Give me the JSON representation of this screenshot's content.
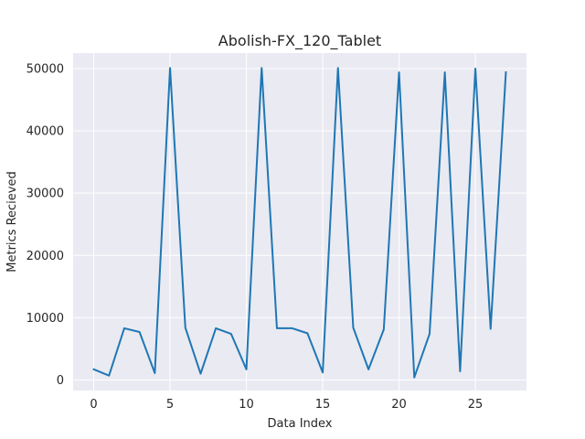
{
  "chart_data": {
    "type": "line",
    "title": "Abolish-FX_120_Tablet",
    "xlabel": "Data Index",
    "ylabel": "Metrics Recieved",
    "xlim": [
      -1.35,
      28.35
    ],
    "ylim": [
      -1700,
      52500
    ],
    "xticks": [
      0,
      5,
      10,
      15,
      20,
      25
    ],
    "yticks": [
      0,
      10000,
      20000,
      30000,
      40000,
      50000
    ],
    "grid": true,
    "line_color": "#1f77b4",
    "background_color": "#eaeaf2",
    "grid_color": "#ffffff",
    "series": [
      {
        "x": [
          0,
          1,
          2,
          3,
          4,
          5,
          6,
          7,
          8,
          9,
          10,
          11,
          12,
          13,
          14,
          15,
          16,
          17,
          18,
          19,
          20,
          21,
          22,
          23,
          24,
          25,
          26,
          27
        ],
        "values": [
          1700,
          700,
          8300,
          7700,
          1100,
          50100,
          8400,
          1000,
          8300,
          7400,
          1700,
          50100,
          8300,
          8300,
          7500,
          1200,
          50100,
          8400,
          1700,
          8100,
          49400,
          400,
          7400,
          49400,
          1400,
          50000,
          8200,
          49400
        ]
      }
    ]
  }
}
